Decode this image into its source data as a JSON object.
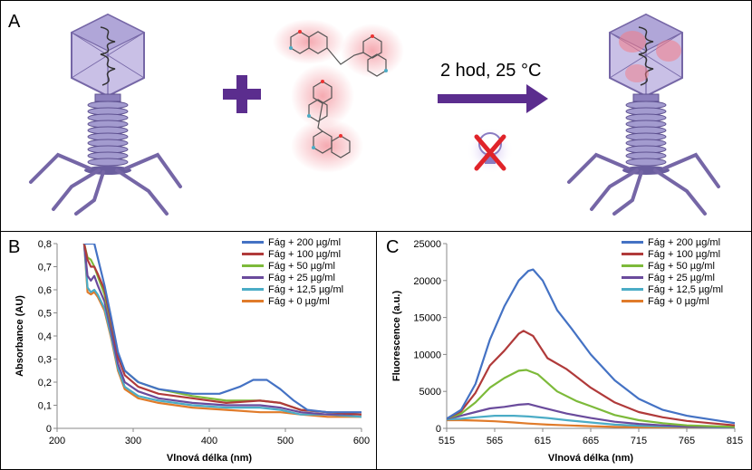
{
  "panels": {
    "a": "A",
    "b": "B",
    "c": "C"
  },
  "reaction_label": "2 hod, 25 °C",
  "icons": {
    "phage": "bacteriophage-icon",
    "plus": "plus-icon",
    "dye": "dye-molecules-icon",
    "arrow": "reaction-arrow-icon",
    "no_light": "no-light-bulb-icon",
    "labeled_phage": "labeled-bacteriophage-icon"
  },
  "colors": {
    "phage": "#7566a6",
    "plus": "#5b2d8e",
    "arrow": "#5b2d8e",
    "cross": "#e0242a",
    "glow": "#f4a0a8"
  },
  "chart_data": [
    {
      "type": "line",
      "panel": "B",
      "xlabel": "Vlnová délka (nm)",
      "ylabel": "Absorbance (AU)",
      "xlim": [
        200,
        650
      ],
      "ylim": [
        0,
        0.8
      ],
      "xticks": [
        "200",
        "300",
        "400",
        "500",
        "600"
      ],
      "yticks": [
        "0",
        "0,1",
        "0,2",
        "0,3",
        "0,4",
        "0,5",
        "0,6",
        "0,7",
        "0,8"
      ],
      "grid": false,
      "legend": "top-right",
      "series": [
        {
          "name": "Fág + 200 µg/ml",
          "color": "#4472c4",
          "points": [
            [
              240,
              0.8
            ],
            [
              250,
              0.8
            ],
            [
              255,
              0.8
            ],
            [
              260,
              0.74
            ],
            [
              270,
              0.62
            ],
            [
              280,
              0.48
            ],
            [
              290,
              0.33
            ],
            [
              300,
              0.25
            ],
            [
              320,
              0.2
            ],
            [
              350,
              0.17
            ],
            [
              400,
              0.15
            ],
            [
              440,
              0.15
            ],
            [
              470,
              0.18
            ],
            [
              490,
              0.21
            ],
            [
              510,
              0.21
            ],
            [
              530,
              0.17
            ],
            [
              550,
              0.12
            ],
            [
              570,
              0.08
            ],
            [
              600,
              0.07
            ],
            [
              650,
              0.07
            ]
          ]
        },
        {
          "name": "Fág + 100 µg/ml",
          "color": "#b03a3a",
          "points": [
            [
              240,
              0.8
            ],
            [
              245,
              0.73
            ],
            [
              250,
              0.7
            ],
            [
              255,
              0.7
            ],
            [
              260,
              0.67
            ],
            [
              270,
              0.6
            ],
            [
              280,
              0.46
            ],
            [
              290,
              0.31
            ],
            [
              300,
              0.23
            ],
            [
              320,
              0.18
            ],
            [
              350,
              0.15
            ],
            [
              400,
              0.13
            ],
            [
              450,
              0.11
            ],
            [
              500,
              0.12
            ],
            [
              530,
              0.11
            ],
            [
              560,
              0.08
            ],
            [
              600,
              0.07
            ],
            [
              650,
              0.06
            ]
          ]
        },
        {
          "name": "Fág + 50 µg/ml",
          "color": "#7dba3a",
          "points": [
            [
              240,
              0.8
            ],
            [
              245,
              0.74
            ],
            [
              250,
              0.73
            ],
            [
              255,
              0.7
            ],
            [
              260,
              0.66
            ],
            [
              270,
              0.58
            ],
            [
              280,
              0.45
            ],
            [
              290,
              0.32
            ],
            [
              300,
              0.25
            ],
            [
              320,
              0.2
            ],
            [
              350,
              0.17
            ],
            [
              400,
              0.14
            ],
            [
              450,
              0.12
            ],
            [
              500,
              0.12
            ],
            [
              530,
              0.11
            ],
            [
              560,
              0.08
            ],
            [
              600,
              0.07
            ],
            [
              650,
              0.06
            ]
          ]
        },
        {
          "name": "Fág + 25 µg/ml",
          "color": "#6a4b9c",
          "points": [
            [
              240,
              0.8
            ],
            [
              245,
              0.66
            ],
            [
              250,
              0.64
            ],
            [
              255,
              0.66
            ],
            [
              260,
              0.62
            ],
            [
              270,
              0.55
            ],
            [
              280,
              0.42
            ],
            [
              290,
              0.28
            ],
            [
              300,
              0.2
            ],
            [
              320,
              0.16
            ],
            [
              350,
              0.13
            ],
            [
              400,
              0.11
            ],
            [
              450,
              0.1
            ],
            [
              500,
              0.1
            ],
            [
              530,
              0.09
            ],
            [
              560,
              0.07
            ],
            [
              600,
              0.06
            ],
            [
              650,
              0.06
            ]
          ]
        },
        {
          "name": "Fág + 12,5 µg/ml",
          "color": "#4bacc6",
          "points": [
            [
              240,
              0.8
            ],
            [
              245,
              0.61
            ],
            [
              250,
              0.59
            ],
            [
              255,
              0.6
            ],
            [
              260,
              0.58
            ],
            [
              270,
              0.52
            ],
            [
              280,
              0.4
            ],
            [
              290,
              0.26
            ],
            [
              300,
              0.18
            ],
            [
              320,
              0.14
            ],
            [
              350,
              0.12
            ],
            [
              400,
              0.1
            ],
            [
              450,
              0.09
            ],
            [
              500,
              0.09
            ],
            [
              530,
              0.08
            ],
            [
              560,
              0.06
            ],
            [
              600,
              0.06
            ],
            [
              650,
              0.05
            ]
          ]
        },
        {
          "name": "Fág + 0 µg/ml",
          "color": "#e07b2a",
          "points": [
            [
              240,
              0.8
            ],
            [
              245,
              0.59
            ],
            [
              250,
              0.58
            ],
            [
              255,
              0.59
            ],
            [
              260,
              0.57
            ],
            [
              270,
              0.51
            ],
            [
              280,
              0.39
            ],
            [
              290,
              0.25
            ],
            [
              300,
              0.17
            ],
            [
              320,
              0.13
            ],
            [
              350,
              0.11
            ],
            [
              400,
              0.09
            ],
            [
              450,
              0.08
            ],
            [
              500,
              0.07
            ],
            [
              530,
              0.07
            ],
            [
              560,
              0.06
            ],
            [
              600,
              0.05
            ],
            [
              650,
              0.05
            ]
          ]
        }
      ]
    },
    {
      "type": "line",
      "panel": "C",
      "xlabel": "Vlnová délka (nm)",
      "ylabel": "Fluorescence (a.u.)",
      "xlim": [
        515,
        815
      ],
      "ylim": [
        0,
        25000
      ],
      "xticks": [
        "515",
        "565",
        "615",
        "665",
        "715",
        "765",
        "815"
      ],
      "yticks": [
        "0",
        "5000",
        "10000",
        "15000",
        "20000",
        "25000"
      ],
      "grid": false,
      "legend": "top-right",
      "series": [
        {
          "name": "Fág + 200 µg/ml",
          "color": "#4472c4",
          "points": [
            [
              515,
              1300
            ],
            [
              530,
              2500
            ],
            [
              545,
              6000
            ],
            [
              560,
              12000
            ],
            [
              575,
              16500
            ],
            [
              590,
              20000
            ],
            [
              600,
              21300
            ],
            [
              605,
              21500
            ],
            [
              615,
              20000
            ],
            [
              630,
              16000
            ],
            [
              645,
              13500
            ],
            [
              665,
              10000
            ],
            [
              690,
              6500
            ],
            [
              715,
              4000
            ],
            [
              740,
              2500
            ],
            [
              765,
              1700
            ],
            [
              790,
              1200
            ],
            [
              815,
              700
            ]
          ]
        },
        {
          "name": "Fág + 100 µg/ml",
          "color": "#b03a3a",
          "points": [
            [
              515,
              1300
            ],
            [
              530,
              2300
            ],
            [
              545,
              4800
            ],
            [
              560,
              8500
            ],
            [
              575,
              10500
            ],
            [
              590,
              12800
            ],
            [
              595,
              13200
            ],
            [
              605,
              12500
            ],
            [
              620,
              9500
            ],
            [
              640,
              8000
            ],
            [
              665,
              5500
            ],
            [
              690,
              3500
            ],
            [
              715,
              2200
            ],
            [
              740,
              1500
            ],
            [
              765,
              1000
            ],
            [
              790,
              700
            ],
            [
              815,
              400
            ]
          ]
        },
        {
          "name": "Fág + 50 µg/ml",
          "color": "#7dba3a",
          "points": [
            [
              515,
              1300
            ],
            [
              530,
              2000
            ],
            [
              545,
              3500
            ],
            [
              560,
              5500
            ],
            [
              575,
              6800
            ],
            [
              590,
              7800
            ],
            [
              598,
              7900
            ],
            [
              610,
              7300
            ],
            [
              630,
              5000
            ],
            [
              650,
              3700
            ],
            [
              665,
              3000
            ],
            [
              690,
              1800
            ],
            [
              715,
              1100
            ],
            [
              740,
              700
            ],
            [
              765,
              400
            ],
            [
              790,
              300
            ],
            [
              815,
              200
            ]
          ]
        },
        {
          "name": "Fág + 25 µg/ml",
          "color": "#6a4b9c",
          "points": [
            [
              515,
              1300
            ],
            [
              530,
              1700
            ],
            [
              545,
              2200
            ],
            [
              560,
              2700
            ],
            [
              575,
              2900
            ],
            [
              590,
              3200
            ],
            [
              600,
              3300
            ],
            [
              615,
              2800
            ],
            [
              640,
              2000
            ],
            [
              665,
              1400
            ],
            [
              690,
              900
            ],
            [
              715,
              600
            ],
            [
              740,
              400
            ],
            [
              765,
              250
            ],
            [
              815,
              150
            ]
          ]
        },
        {
          "name": "Fág + 12,5 µg/ml",
          "color": "#4bacc6",
          "points": [
            [
              515,
              1200
            ],
            [
              530,
              1300
            ],
            [
              545,
              1500
            ],
            [
              565,
              1700
            ],
            [
              585,
              1700
            ],
            [
              600,
              1600
            ],
            [
              620,
              1400
            ],
            [
              640,
              1100
            ],
            [
              665,
              800
            ],
            [
              690,
              500
            ],
            [
              715,
              350
            ],
            [
              765,
              200
            ],
            [
              815,
              100
            ]
          ]
        },
        {
          "name": "Fág + 0 µg/ml",
          "color": "#e07b2a",
          "points": [
            [
              515,
              1100
            ],
            [
              530,
              1100
            ],
            [
              545,
              1050
            ],
            [
              565,
              950
            ],
            [
              585,
              800
            ],
            [
              600,
              650
            ],
            [
              620,
              500
            ],
            [
              640,
              400
            ],
            [
              665,
              300
            ],
            [
              690,
              200
            ],
            [
              715,
              150
            ],
            [
              765,
              100
            ],
            [
              815,
              50
            ]
          ]
        }
      ]
    }
  ]
}
